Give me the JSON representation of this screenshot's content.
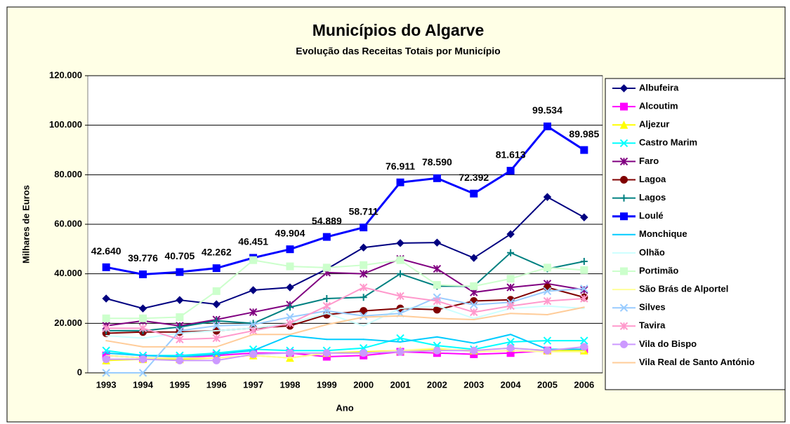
{
  "chart_data": {
    "type": "line",
    "title": "Municípios do Algarve",
    "subtitle": "Evolução das Receitas Totais por Município",
    "y_label": "Milhares de Euros",
    "x_label": "Ano",
    "categories": [
      "1993",
      "1994",
      "1995",
      "1996",
      "1997",
      "1998",
      "1999",
      "2000",
      "2001",
      "2002",
      "2003",
      "2004",
      "2005",
      "2006"
    ],
    "ylim": [
      0,
      120000
    ],
    "yticks": [
      0,
      {
        "value": 20000,
        "label": "20.000"
      },
      {
        "value": 40000,
        "label": "40.000"
      },
      {
        "value": 60000,
        "label": "60.000"
      },
      {
        "value": 80000,
        "label": "80.000"
      },
      {
        "value": 100000,
        "label": "100.000"
      },
      {
        "value": 120000,
        "label": "120.000"
      }
    ],
    "grid": true,
    "legend": "right",
    "series": [
      {
        "name": "Albufeira",
        "color": "#000080",
        "marker": "diamond",
        "values": [
          30000,
          26000,
          29400,
          27700,
          33400,
          34500,
          41900,
          50600,
          52400,
          52600,
          46400,
          56000,
          71000,
          62800
        ]
      },
      {
        "name": "Alcoutim",
        "color": "#ff00ff",
        "marker": "square",
        "values": [
          7000,
          6000,
          6000,
          7000,
          8000,
          8000,
          6500,
          7000,
          8500,
          8000,
          7500,
          8000,
          9000,
          9500
        ]
      },
      {
        "name": "Aljezur",
        "color": "#ffff00",
        "marker": "triangle",
        "values": [
          5000,
          5500,
          5500,
          6000,
          7000,
          6000,
          8000,
          8500,
          9000,
          9500,
          9000,
          10000,
          9000,
          9000
        ]
      },
      {
        "name": "Castro Marim",
        "color": "#00ffff",
        "marker": "x",
        "values": [
          9000,
          7000,
          7000,
          8000,
          9500,
          9000,
          9000,
          10000,
          14000,
          11000,
          9500,
          12500,
          13000,
          13000
        ]
      },
      {
        "name": "Faro",
        "color": "#800080",
        "marker": "star",
        "values": [
          19000,
          21000,
          19000,
          21500,
          24500,
          27500,
          40500,
          40000,
          46000,
          42000,
          32500,
          34500,
          36000,
          33500
        ]
      },
      {
        "name": "Lagoa",
        "color": "#800000",
        "marker": "circle",
        "values": [
          16000,
          16500,
          16500,
          17000,
          18000,
          19000,
          23500,
          25000,
          26000,
          25500,
          29000,
          29500,
          34500,
          30500
        ]
      },
      {
        "name": "Lagos",
        "color": "#008080",
        "marker": "plus",
        "values": [
          17000,
          17000,
          18500,
          21000,
          20000,
          26500,
          30000,
          30500,
          40000,
          35000,
          35000,
          48500,
          42000,
          45000
        ]
      },
      {
        "name": "Loulé",
        "color": "#0000ff",
        "marker": "square",
        "width": 3,
        "values": [
          42640,
          39776,
          40705,
          42262,
          46451,
          49904,
          54889,
          58711,
          76911,
          78590,
          72392,
          81613,
          99534,
          89985
        ],
        "value_labels": [
          "42.640",
          "39.776",
          "40.705",
          "42.262",
          "46.451",
          "49.904",
          "54.889",
          "58.711",
          "76.911",
          "78.590",
          "72.392",
          "81.613",
          "99.534",
          "89.985"
        ]
      },
      {
        "name": "Monchique",
        "color": "#00ccff",
        "marker": "none",
        "values": [
          8000,
          7000,
          6500,
          7500,
          9000,
          15000,
          13500,
          13500,
          12500,
          14500,
          12000,
          15500,
          9500,
          9500
        ]
      },
      {
        "name": "Olhão",
        "color": "#ccffff",
        "marker": "none",
        "values": [
          15000,
          14000,
          16000,
          17000,
          18000,
          20000,
          24000,
          19000,
          26000,
          27000,
          22000,
          26000,
          27000,
          26000
        ]
      },
      {
        "name": "Portimão",
        "color": "#ccffcc",
        "marker": "square",
        "values": [
          22000,
          22000,
          22500,
          33000,
          45500,
          43000,
          42500,
          43500,
          45500,
          35500,
          35000,
          38000,
          42500,
          41500
        ]
      },
      {
        "name": "São Brás de Alportel",
        "color": "#ffff99",
        "marker": "none",
        "values": [
          7000,
          6000,
          6000,
          6000,
          7000,
          6000,
          8000,
          8000,
          9000,
          10000,
          8500,
          9000,
          8500,
          8500
        ]
      },
      {
        "name": "Silves",
        "color": "#99ccff",
        "marker": "x",
        "values": [
          0,
          0,
          17000,
          19000,
          19500,
          22500,
          25000,
          23000,
          24000,
          30500,
          27500,
          28500,
          33000,
          34000
        ]
      },
      {
        "name": "Tavira",
        "color": "#ff99cc",
        "marker": "star",
        "values": [
          18000,
          18000,
          13500,
          14000,
          17000,
          20000,
          27000,
          34500,
          31000,
          29000,
          24500,
          27000,
          29000,
          30000
        ]
      },
      {
        "name": "Vila do Bispo",
        "color": "#cc99ff",
        "marker": "circle",
        "values": [
          5500,
          5500,
          5000,
          5000,
          7500,
          8000,
          8000,
          8000,
          8500,
          9000,
          9000,
          10000,
          9000,
          10500
        ]
      },
      {
        "name": "Vila Real de Santo António",
        "color": "#ffcc99",
        "marker": "none",
        "values": [
          13000,
          10500,
          10500,
          10500,
          15500,
          15500,
          19500,
          22500,
          23000,
          22000,
          21500,
          24000,
          23500,
          26500
        ]
      }
    ]
  }
}
